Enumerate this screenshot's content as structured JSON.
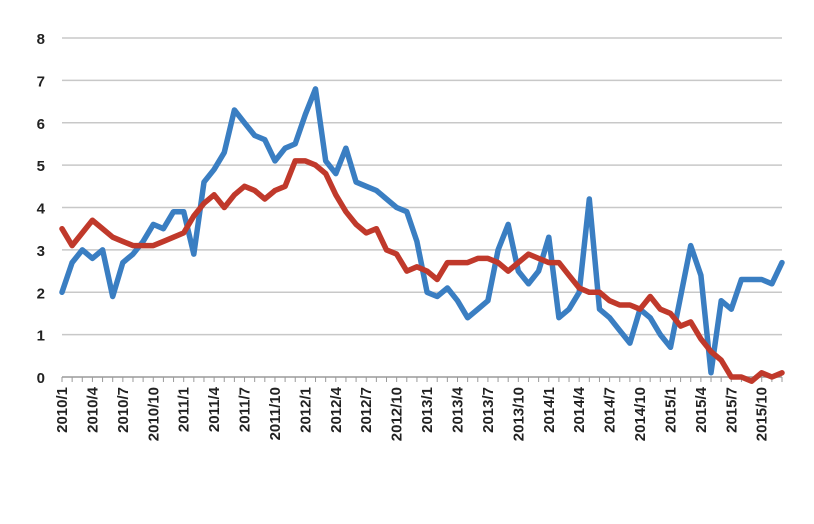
{
  "chart_data": {
    "type": "line",
    "title": "",
    "xlabel": "",
    "ylabel": "",
    "ylim": [
      0,
      8
    ],
    "yticks": [
      0,
      1,
      2,
      3,
      4,
      5,
      6,
      7,
      8
    ],
    "grid": true,
    "legend": "none",
    "x_start": "2010/1",
    "x_end": "2015/10",
    "xtick_labels": [
      "2010/1",
      "2010/4",
      "2010/7",
      "2010/10",
      "2011/1",
      "2011/4",
      "2011/7",
      "2011/10",
      "2012/1",
      "2012/4",
      "2012/7",
      "2012/10",
      "2013/1",
      "2013/4",
      "2013/7",
      "2013/10",
      "2014/1",
      "2014/4",
      "2014/7",
      "2014/10",
      "2015/1",
      "2015/4",
      "2015/7",
      "2015/10"
    ],
    "series": [
      {
        "color": "#3a7ec2",
        "values": [
          2.0,
          2.7,
          3.0,
          2.8,
          3.0,
          1.9,
          2.7,
          2.9,
          3.2,
          3.6,
          3.5,
          3.9,
          3.9,
          2.9,
          4.6,
          4.9,
          5.3,
          6.3,
          6.0,
          5.7,
          5.6,
          5.1,
          5.4,
          5.5,
          6.2,
          6.8,
          5.1,
          4.8,
          5.4,
          4.6,
          4.5,
          4.4,
          4.2,
          4.0,
          3.9,
          3.2,
          2.0,
          1.9,
          2.1,
          1.8,
          1.4,
          1.6,
          1.8,
          3.0,
          3.6,
          2.5,
          2.2,
          2.5,
          3.3,
          1.4,
          1.6,
          2.0,
          4.2,
          1.6,
          1.4,
          1.1,
          0.8,
          1.6,
          1.4,
          1.0,
          0.7,
          1.9,
          3.1,
          2.4,
          0.1,
          1.8,
          1.6,
          2.3,
          2.3,
          2.3,
          2.2,
          2.7
        ]
      },
      {
        "color": "#c0392b",
        "values": [
          3.5,
          3.1,
          3.4,
          3.7,
          3.5,
          3.3,
          3.2,
          3.1,
          3.1,
          3.1,
          3.2,
          3.3,
          3.4,
          3.8,
          4.1,
          4.3,
          4.0,
          4.3,
          4.5,
          4.4,
          4.2,
          4.4,
          4.5,
          5.1,
          5.1,
          5.0,
          4.8,
          4.3,
          3.9,
          3.6,
          3.4,
          3.5,
          3.0,
          2.9,
          2.5,
          2.6,
          2.5,
          2.3,
          2.7,
          2.7,
          2.7,
          2.8,
          2.8,
          2.7,
          2.5,
          2.7,
          2.9,
          2.8,
          2.7,
          2.7,
          2.4,
          2.1,
          2.0,
          2.0,
          1.8,
          1.7,
          1.7,
          1.6,
          1.9,
          1.6,
          1.5,
          1.2,
          1.3,
          0.9,
          0.6,
          0.4,
          0.0,
          0.0,
          -0.1,
          0.1,
          0.0,
          0.1
        ]
      }
    ]
  }
}
